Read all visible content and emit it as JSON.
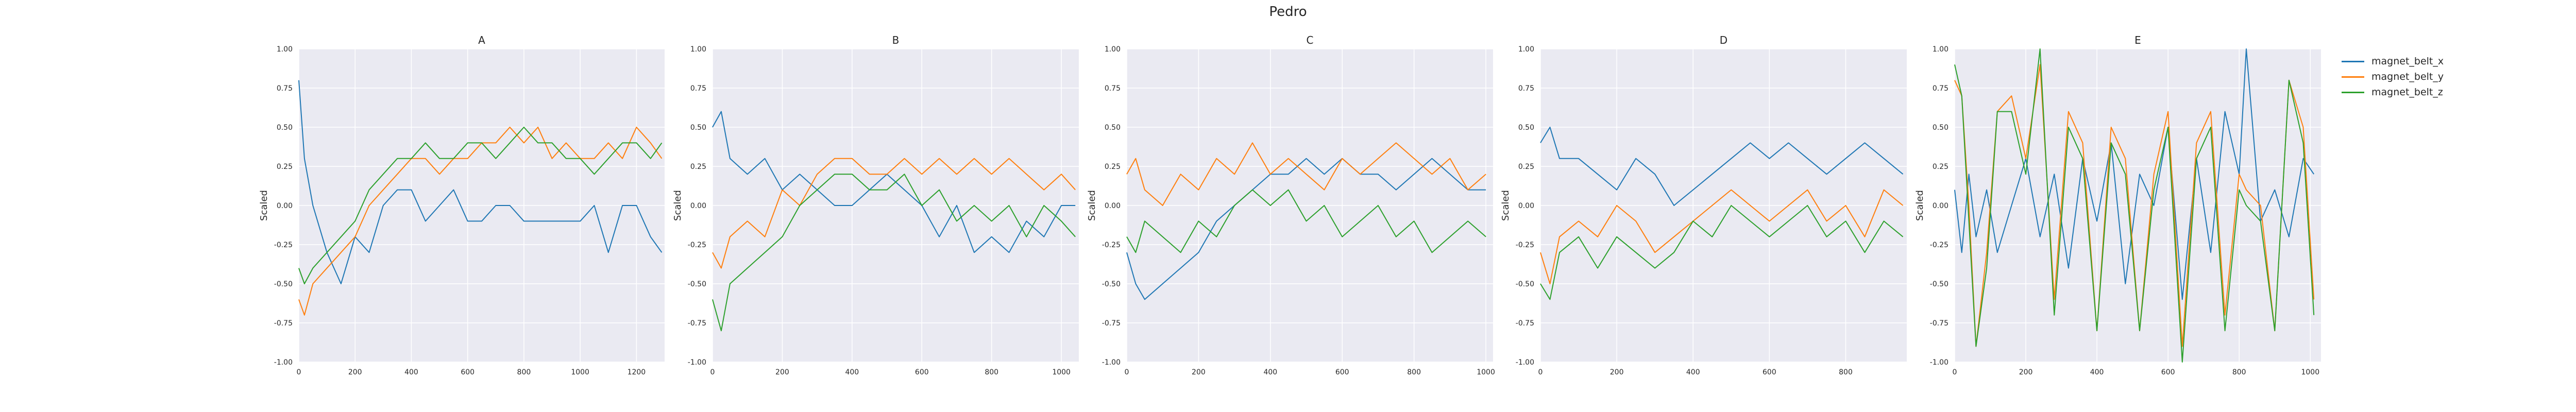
{
  "figure": {
    "title": "Pedro"
  },
  "legend": {
    "placement": "right",
    "items": [
      {
        "label": "magnet_belt_x",
        "color": "#1f77b4"
      },
      {
        "label": "magnet_belt_y",
        "color": "#ff7f0e"
      },
      {
        "label": "magnet_belt_z",
        "color": "#2ca02c"
      }
    ]
  },
  "chart_data": [
    {
      "type": "line",
      "title": "A",
      "xlabel": "",
      "ylabel": "Scaled",
      "grid": true,
      "xlim": [
        0,
        1300
      ],
      "ylim": [
        -1.0,
        1.0
      ],
      "xticks": [
        0,
        200,
        400,
        600,
        800,
        1000,
        1200
      ],
      "xtick_labels": [
        "0",
        "200",
        "400",
        "600",
        "800",
        "1000",
        "1200"
      ],
      "yticks": [
        -1.0,
        -0.75,
        -0.5,
        -0.25,
        0.0,
        0.25,
        0.5,
        0.75,
        1.0
      ],
      "ytick_labels": [
        "-1.00",
        "-0.75",
        "-0.50",
        "-0.25",
        "0.00",
        "0.25",
        "0.50",
        "0.75",
        "1.00"
      ],
      "series": [
        {
          "name": "magnet_belt_x",
          "color": "#1f77b4",
          "x": [
            0,
            20,
            50,
            100,
            150,
            200,
            250,
            300,
            350,
            400,
            450,
            500,
            550,
            600,
            650,
            700,
            750,
            800,
            850,
            900,
            950,
            1000,
            1050,
            1100,
            1150,
            1200,
            1250,
            1290
          ],
          "y": [
            0.8,
            0.3,
            0.0,
            -0.3,
            -0.5,
            -0.2,
            -0.3,
            0.0,
            0.1,
            0.1,
            -0.1,
            0.0,
            0.1,
            -0.1,
            -0.1,
            0.0,
            0.0,
            -0.1,
            -0.1,
            -0.1,
            -0.1,
            -0.1,
            0.0,
            -0.3,
            0.0,
            0.0,
            -0.2,
            -0.3
          ]
        },
        {
          "name": "magnet_belt_y",
          "color": "#ff7f0e",
          "x": [
            0,
            20,
            50,
            100,
            150,
            200,
            250,
            300,
            350,
            400,
            450,
            500,
            550,
            600,
            650,
            700,
            750,
            800,
            850,
            900,
            950,
            1000,
            1050,
            1100,
            1150,
            1200,
            1250,
            1290
          ],
          "y": [
            -0.6,
            -0.7,
            -0.5,
            -0.4,
            -0.3,
            -0.2,
            0.0,
            0.1,
            0.2,
            0.3,
            0.3,
            0.2,
            0.3,
            0.3,
            0.4,
            0.4,
            0.5,
            0.4,
            0.5,
            0.3,
            0.4,
            0.3,
            0.3,
            0.4,
            0.3,
            0.5,
            0.4,
            0.3
          ]
        },
        {
          "name": "magnet_belt_z",
          "color": "#2ca02c",
          "x": [
            0,
            20,
            50,
            100,
            150,
            200,
            250,
            300,
            350,
            400,
            450,
            500,
            550,
            600,
            650,
            700,
            750,
            800,
            850,
            900,
            950,
            1000,
            1050,
            1100,
            1150,
            1200,
            1250,
            1290
          ],
          "y": [
            -0.4,
            -0.5,
            -0.4,
            -0.3,
            -0.2,
            -0.1,
            0.1,
            0.2,
            0.3,
            0.3,
            0.4,
            0.3,
            0.3,
            0.4,
            0.4,
            0.3,
            0.4,
            0.5,
            0.4,
            0.4,
            0.3,
            0.3,
            0.2,
            0.3,
            0.4,
            0.4,
            0.3,
            0.4
          ]
        }
      ]
    },
    {
      "type": "line",
      "title": "B",
      "xlabel": "",
      "ylabel": "Scaled",
      "grid": true,
      "xlim": [
        0,
        1050
      ],
      "ylim": [
        -1.0,
        1.0
      ],
      "xticks": [
        0,
        200,
        400,
        600,
        800,
        1000
      ],
      "xtick_labels": [
        "0",
        "200",
        "400",
        "600",
        "800",
        "1000"
      ],
      "yticks": [
        -1.0,
        -0.75,
        -0.5,
        -0.25,
        0.0,
        0.25,
        0.5,
        0.75,
        1.0
      ],
      "ytick_labels": [
        "-1.00",
        "-0.75",
        "-0.50",
        "-0.25",
        "0.00",
        "0.25",
        "0.50",
        "0.75",
        "1.00"
      ],
      "series": [
        {
          "name": "magnet_belt_x",
          "color": "#1f77b4",
          "x": [
            0,
            25,
            50,
            100,
            150,
            200,
            250,
            300,
            350,
            400,
            450,
            500,
            550,
            600,
            650,
            700,
            750,
            800,
            850,
            900,
            950,
            1000,
            1040
          ],
          "y": [
            0.5,
            0.6,
            0.3,
            0.2,
            0.3,
            0.1,
            0.2,
            0.1,
            0.0,
            0.0,
            0.1,
            0.2,
            0.1,
            0.0,
            -0.2,
            0.0,
            -0.3,
            -0.2,
            -0.3,
            -0.1,
            -0.2,
            0.0,
            0.0
          ]
        },
        {
          "name": "magnet_belt_y",
          "color": "#ff7f0e",
          "x": [
            0,
            25,
            50,
            100,
            150,
            200,
            250,
            300,
            350,
            400,
            450,
            500,
            550,
            600,
            650,
            700,
            750,
            800,
            850,
            900,
            950,
            1000,
            1040
          ],
          "y": [
            -0.3,
            -0.4,
            -0.2,
            -0.1,
            -0.2,
            0.1,
            0.0,
            0.2,
            0.3,
            0.3,
            0.2,
            0.2,
            0.3,
            0.2,
            0.3,
            0.2,
            0.3,
            0.2,
            0.3,
            0.2,
            0.1,
            0.2,
            0.1
          ]
        },
        {
          "name": "magnet_belt_z",
          "color": "#2ca02c",
          "x": [
            0,
            25,
            50,
            100,
            150,
            200,
            250,
            300,
            350,
            400,
            450,
            500,
            550,
            600,
            650,
            700,
            750,
            800,
            850,
            900,
            950,
            1000,
            1040
          ],
          "y": [
            -0.6,
            -0.8,
            -0.5,
            -0.4,
            -0.3,
            -0.2,
            0.0,
            0.1,
            0.2,
            0.2,
            0.1,
            0.1,
            0.2,
            0.0,
            0.1,
            -0.1,
            0.0,
            -0.1,
            0.0,
            -0.2,
            0.0,
            -0.1,
            -0.2
          ]
        }
      ]
    },
    {
      "type": "line",
      "title": "C",
      "xlabel": "",
      "ylabel": "Scaled",
      "grid": true,
      "xlim": [
        0,
        1020
      ],
      "ylim": [
        -1.0,
        1.0
      ],
      "xticks": [
        0,
        200,
        400,
        600,
        800,
        1000
      ],
      "xtick_labels": [
        "0",
        "200",
        "400",
        "600",
        "800",
        "1000"
      ],
      "yticks": [
        -1.0,
        -0.75,
        -0.5,
        -0.25,
        0.0,
        0.25,
        0.5,
        0.75,
        1.0
      ],
      "ytick_labels": [
        "-1.00",
        "-0.75",
        "-0.50",
        "-0.25",
        "0.00",
        "0.25",
        "0.50",
        "0.75",
        "1.00"
      ],
      "series": [
        {
          "name": "magnet_belt_x",
          "color": "#1f77b4",
          "x": [
            0,
            25,
            50,
            100,
            150,
            200,
            250,
            300,
            350,
            400,
            450,
            500,
            550,
            600,
            650,
            700,
            750,
            800,
            850,
            900,
            950,
            1000
          ],
          "y": [
            -0.3,
            -0.5,
            -0.6,
            -0.5,
            -0.4,
            -0.3,
            -0.1,
            0.0,
            0.1,
            0.2,
            0.2,
            0.3,
            0.2,
            0.3,
            0.2,
            0.2,
            0.1,
            0.2,
            0.3,
            0.2,
            0.1,
            0.1
          ]
        },
        {
          "name": "magnet_belt_y",
          "color": "#ff7f0e",
          "x": [
            0,
            25,
            50,
            100,
            150,
            200,
            250,
            300,
            350,
            400,
            450,
            500,
            550,
            600,
            650,
            700,
            750,
            800,
            850,
            900,
            950,
            1000
          ],
          "y": [
            0.2,
            0.3,
            0.1,
            0.0,
            0.2,
            0.1,
            0.3,
            0.2,
            0.4,
            0.2,
            0.3,
            0.2,
            0.1,
            0.3,
            0.2,
            0.3,
            0.4,
            0.3,
            0.2,
            0.3,
            0.1,
            0.2
          ]
        },
        {
          "name": "magnet_belt_z",
          "color": "#2ca02c",
          "x": [
            0,
            25,
            50,
            100,
            150,
            200,
            250,
            300,
            350,
            400,
            450,
            500,
            550,
            600,
            650,
            700,
            750,
            800,
            850,
            900,
            950,
            1000
          ],
          "y": [
            -0.2,
            -0.3,
            -0.1,
            -0.2,
            -0.3,
            -0.1,
            -0.2,
            0.0,
            0.1,
            0.0,
            0.1,
            -0.1,
            0.0,
            -0.2,
            -0.1,
            0.0,
            -0.2,
            -0.1,
            -0.3,
            -0.2,
            -0.1,
            -0.2
          ]
        }
      ]
    },
    {
      "type": "line",
      "title": "D",
      "xlabel": "",
      "ylabel": "Scaled",
      "grid": true,
      "xlim": [
        0,
        960
      ],
      "ylim": [
        -1.0,
        1.0
      ],
      "xticks": [
        0,
        200,
        400,
        600,
        800
      ],
      "xtick_labels": [
        "0",
        "200",
        "400",
        "600",
        "800"
      ],
      "yticks": [
        -1.0,
        -0.75,
        -0.5,
        -0.25,
        0.0,
        0.25,
        0.5,
        0.75,
        1.0
      ],
      "ytick_labels": [
        "-1.00",
        "-0.75",
        "-0.50",
        "-0.25",
        "0.00",
        "0.25",
        "0.50",
        "0.75",
        "1.00"
      ],
      "series": [
        {
          "name": "magnet_belt_x",
          "color": "#1f77b4",
          "x": [
            0,
            25,
            50,
            100,
            150,
            200,
            250,
            300,
            350,
            400,
            450,
            500,
            550,
            600,
            650,
            700,
            750,
            800,
            850,
            900,
            950
          ],
          "y": [
            0.4,
            0.5,
            0.3,
            0.3,
            0.2,
            0.1,
            0.3,
            0.2,
            0.0,
            0.1,
            0.2,
            0.3,
            0.4,
            0.3,
            0.4,
            0.3,
            0.2,
            0.3,
            0.4,
            0.3,
            0.2
          ]
        },
        {
          "name": "magnet_belt_y",
          "color": "#ff7f0e",
          "x": [
            0,
            25,
            50,
            100,
            150,
            200,
            250,
            300,
            350,
            400,
            450,
            500,
            550,
            600,
            650,
            700,
            750,
            800,
            850,
            900,
            950
          ],
          "y": [
            -0.3,
            -0.5,
            -0.2,
            -0.1,
            -0.2,
            0.0,
            -0.1,
            -0.3,
            -0.2,
            -0.1,
            0.0,
            0.1,
            0.0,
            -0.1,
            0.0,
            0.1,
            -0.1,
            0.0,
            -0.2,
            0.1,
            0.0
          ]
        },
        {
          "name": "magnet_belt_z",
          "color": "#2ca02c",
          "x": [
            0,
            25,
            50,
            100,
            150,
            200,
            250,
            300,
            350,
            400,
            450,
            500,
            550,
            600,
            650,
            700,
            750,
            800,
            850,
            900,
            950
          ],
          "y": [
            -0.5,
            -0.6,
            -0.3,
            -0.2,
            -0.4,
            -0.2,
            -0.3,
            -0.4,
            -0.3,
            -0.1,
            -0.2,
            0.0,
            -0.1,
            -0.2,
            -0.1,
            0.0,
            -0.2,
            -0.1,
            -0.3,
            -0.1,
            -0.2
          ]
        }
      ]
    },
    {
      "type": "line",
      "title": "E",
      "xlabel": "",
      "ylabel": "Scaled",
      "grid": true,
      "xlim": [
        0,
        1030
      ],
      "ylim": [
        -1.0,
        1.0
      ],
      "xticks": [
        0,
        200,
        400,
        600,
        800,
        1000
      ],
      "xtick_labels": [
        "0",
        "200",
        "400",
        "600",
        "800",
        "1000"
      ],
      "yticks": [
        -1.0,
        -0.75,
        -0.5,
        -0.25,
        0.0,
        0.25,
        0.5,
        0.75,
        1.0
      ],
      "ytick_labels": [
        "-1.00",
        "-0.75",
        "-0.50",
        "-0.25",
        "0.00",
        "0.25",
        "0.50",
        "0.75",
        "1.00"
      ],
      "series": [
        {
          "name": "magnet_belt_x",
          "color": "#1f77b4",
          "x": [
            0,
            20,
            40,
            60,
            90,
            120,
            160,
            200,
            240,
            280,
            320,
            360,
            400,
            440,
            480,
            520,
            560,
            600,
            640,
            680,
            720,
            760,
            800,
            820,
            860,
            900,
            940,
            980,
            1010
          ],
          "y": [
            0.1,
            -0.3,
            0.2,
            -0.2,
            0.1,
            -0.3,
            0.0,
            0.3,
            -0.2,
            0.2,
            -0.4,
            0.3,
            -0.1,
            0.4,
            -0.5,
            0.2,
            0.0,
            0.5,
            -0.6,
            0.3,
            -0.3,
            0.6,
            0.2,
            1.0,
            -0.1,
            0.1,
            -0.2,
            0.3,
            0.2
          ]
        },
        {
          "name": "magnet_belt_y",
          "color": "#ff7f0e",
          "x": [
            0,
            20,
            40,
            60,
            90,
            120,
            160,
            200,
            240,
            280,
            320,
            360,
            400,
            440,
            480,
            520,
            560,
            600,
            640,
            680,
            720,
            760,
            800,
            820,
            860,
            900,
            940,
            980,
            1010
          ],
          "y": [
            0.8,
            0.7,
            0.0,
            -0.9,
            -0.3,
            0.6,
            0.7,
            0.3,
            0.9,
            -0.6,
            0.6,
            0.4,
            -0.8,
            0.5,
            0.3,
            -0.8,
            0.2,
            0.6,
            -0.9,
            0.4,
            0.6,
            -0.7,
            0.2,
            0.1,
            0.0,
            -0.8,
            0.8,
            0.5,
            -0.6
          ]
        },
        {
          "name": "magnet_belt_z",
          "color": "#2ca02c",
          "x": [
            0,
            20,
            40,
            60,
            90,
            120,
            160,
            200,
            240,
            280,
            320,
            360,
            400,
            440,
            480,
            520,
            560,
            600,
            640,
            680,
            720,
            760,
            800,
            820,
            860,
            900,
            940,
            980,
            1010
          ],
          "y": [
            0.9,
            0.7,
            -0.1,
            -0.9,
            -0.4,
            0.6,
            0.6,
            0.2,
            1.0,
            -0.7,
            0.5,
            0.3,
            -0.8,
            0.4,
            0.2,
            -0.8,
            0.1,
            0.5,
            -1.0,
            0.3,
            0.5,
            -0.8,
            0.1,
            0.0,
            -0.1,
            -0.8,
            0.8,
            0.4,
            -0.7
          ]
        }
      ]
    }
  ]
}
